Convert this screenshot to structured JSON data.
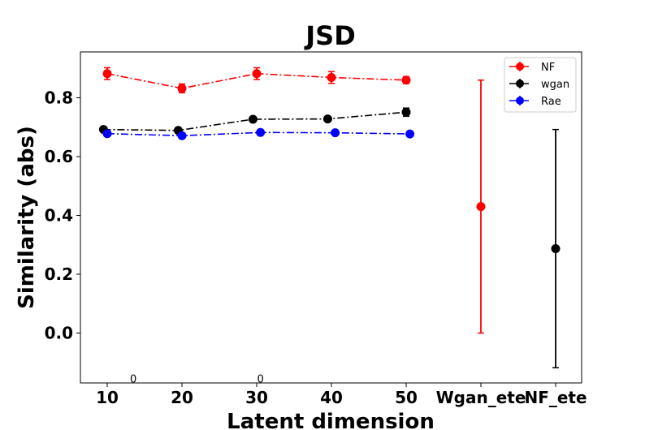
{
  "chart_data": {
    "type": "scatter",
    "title": "JSD",
    "xlabel": "Latent dimension",
    "ylabel": "Similarity (abs)",
    "x_ticks": [
      "10",
      "20",
      "30",
      "40",
      "50",
      "Wgan_ete",
      "NF_ete"
    ],
    "y_ticks": [
      "0.0",
      "0.2",
      "0.4",
      "0.6",
      "0.8"
    ],
    "ylim": [
      -0.17,
      0.96
    ],
    "grid": false,
    "legend_position": "top-right",
    "annotations": [
      {
        "text": "0",
        "x": 13.5,
        "y": -0.155
      },
      {
        "text": "0",
        "x": 30.5,
        "y": -0.155
      }
    ],
    "series": [
      {
        "name": "NF",
        "color": "#ff0000",
        "linestyle": "dash-dot",
        "points": [
          {
            "x": 10,
            "y": 0.882,
            "err": 0.02
          },
          {
            "x": 20,
            "y": 0.832,
            "err": 0.015
          },
          {
            "x": 30,
            "y": 0.882,
            "err": 0.02
          },
          {
            "x": 40,
            "y": 0.869,
            "err": 0.02
          },
          {
            "x": 50,
            "y": 0.86,
            "err": 0.012
          }
        ]
      },
      {
        "name": "wgan",
        "color": "#000000",
        "linestyle": "dash-dot",
        "points": [
          {
            "x": 9.5,
            "y": 0.692,
            "err": 0.006
          },
          {
            "x": 19.5,
            "y": 0.689,
            "err": 0.006
          },
          {
            "x": 29.5,
            "y": 0.727,
            "err": 0.006
          },
          {
            "x": 39.5,
            "y": 0.728,
            "err": 0.006
          },
          {
            "x": 50,
            "y": 0.751,
            "err": 0.014
          }
        ]
      },
      {
        "name": "Rae",
        "color": "#0000ff",
        "linestyle": "dash-dot",
        "points": [
          {
            "x": 10,
            "y": 0.678,
            "err": 0.006
          },
          {
            "x": 20,
            "y": 0.671,
            "err": 0.006
          },
          {
            "x": 30.5,
            "y": 0.682,
            "err": 0.006
          },
          {
            "x": 40.5,
            "y": 0.681,
            "err": 0.006
          },
          {
            "x": 50.5,
            "y": 0.677,
            "err": 0.006
          }
        ]
      },
      {
        "name": "Wgan_ete",
        "color": "#ff0000",
        "linestyle": "none",
        "points": [
          {
            "x": 60,
            "y": 0.43,
            "err": 0.43
          }
        ]
      },
      {
        "name": "NF_ete",
        "color": "#000000",
        "linestyle": "none",
        "points": [
          {
            "x": 70,
            "y": 0.287,
            "err": 0.405
          }
        ]
      }
    ],
    "legend": [
      "NF",
      "wgan",
      "Rae"
    ]
  }
}
